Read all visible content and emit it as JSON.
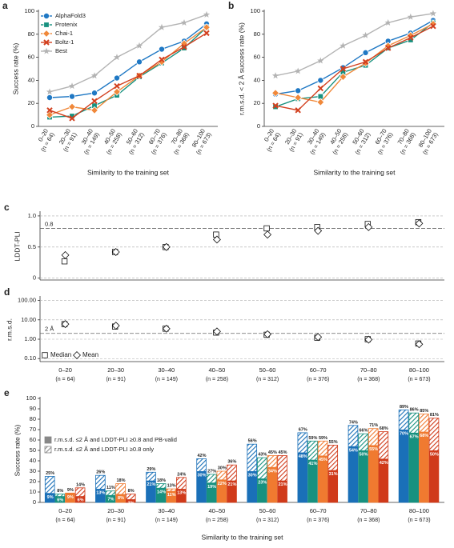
{
  "chart_data": [
    {
      "panel": "a",
      "type": "line",
      "ylabel": "Success rate (%)",
      "xlabel": "Similarity to the training set",
      "categories": [
        "0–20",
        "20–30",
        "30–40",
        "40–50",
        "50–60",
        "60–70",
        "70–80",
        "80–100"
      ],
      "category_counts": [
        "(n = 64)",
        "(n = 91)",
        "(n = 149)",
        "(n = 258)",
        "(n = 312)",
        "(n = 376)",
        "(n = 368)",
        "(n = 673)"
      ],
      "ylim": [
        0,
        100
      ],
      "yticks": [
        0,
        20,
        40,
        60,
        80,
        100
      ],
      "legend": "upper left",
      "series": [
        {
          "name": "AlphaFold3",
          "color": "#1f78c4",
          "marker": "circle",
          "values": [
            25,
            26,
            29,
            42,
            56,
            67,
            74,
            89
          ]
        },
        {
          "name": "Protenix",
          "color": "#17917f",
          "marker": "square",
          "values": [
            8,
            9,
            18,
            27,
            43,
            55,
            68,
            86
          ]
        },
        {
          "name": "Chai-1",
          "color": "#f0883a",
          "marker": "diamond",
          "values": [
            10,
            17,
            14,
            30,
            44,
            56,
            72,
            86
          ]
        },
        {
          "name": "Boltz-1",
          "color": "#d2401f",
          "marker": "x",
          "values": [
            14,
            7,
            22,
            35,
            44,
            58,
            69,
            81
          ]
        },
        {
          "name": "Best",
          "color": "#b3b3b3",
          "marker": "star",
          "values": [
            30,
            35,
            44,
            60,
            70,
            86,
            90,
            97
          ]
        }
      ]
    },
    {
      "panel": "b",
      "type": "line",
      "ylabel": "r.m.s.d. < 2 Å success rate (%)",
      "xlabel": "Similarity to the training set",
      "categories": [
        "0–20",
        "20–30",
        "30–40",
        "40–50",
        "50–60",
        "60–70",
        "70–80",
        "80–100"
      ],
      "category_counts": [
        "(n = 64)",
        "(n = 91)",
        "(n = 149)",
        "(n = 258)",
        "(n = 312)",
        "(n = 376)",
        "(n = 368)",
        "(n = 673)"
      ],
      "ylim": [
        0,
        100
      ],
      "yticks": [
        0,
        20,
        40,
        60,
        80,
        100
      ],
      "series": [
        {
          "color": "#1f78c4",
          "marker": "circle",
          "values": [
            28,
            31,
            40,
            51,
            64,
            74,
            81,
            92
          ]
        },
        {
          "color": "#17917f",
          "marker": "square",
          "values": [
            17,
            24,
            26,
            47,
            53,
            68,
            75,
            90
          ]
        },
        {
          "color": "#f0883a",
          "marker": "diamond",
          "values": [
            29,
            25,
            21,
            43,
            55,
            70,
            79,
            89
          ]
        },
        {
          "color": "#d2401f",
          "marker": "x",
          "values": [
            18,
            14,
            33,
            50,
            56,
            68,
            77,
            87
          ]
        },
        {
          "color": "#b3b3b3",
          "marker": "star",
          "values": [
            44,
            48,
            57,
            70,
            79,
            90,
            95,
            98
          ]
        }
      ]
    },
    {
      "panel": "c",
      "type": "strip",
      "ylabel": "LDDT-PLI",
      "ylim": [
        -0.03,
        1.05
      ],
      "yticks": [
        0,
        0.5,
        {
          "value": 1,
          "label": "1.0"
        }
      ],
      "grid": true,
      "threshold": {
        "value": 0.8,
        "label": "0.8"
      },
      "series": [
        {
          "marker": "square",
          "values": [
            0.27,
            0.42,
            0.5,
            0.7,
            0.8,
            0.82,
            0.87,
            0.9
          ]
        },
        {
          "marker": "diamond",
          "values": [
            0.37,
            0.42,
            0.5,
            0.62,
            0.7,
            0.76,
            0.82,
            0.88
          ]
        }
      ]
    },
    {
      "panel": "d",
      "type": "strip",
      "ylabel": "r.m.s.d.",
      "log": true,
      "categories": [
        "0–20",
        "20–30",
        "30–40",
        "40–50",
        "50–60",
        "60–70",
        "70–80",
        "80–100"
      ],
      "category_counts": [
        "(n = 64)",
        "(n = 91)",
        "(n = 149)",
        "(n = 258)",
        "(n = 312)",
        "(n = 376)",
        "(n = 368)",
        "(n = 673)"
      ],
      "ylim": [
        0.07,
        140
      ],
      "yticks": [
        {
          "value": 0.1,
          "label": "0.10"
        },
        {
          "value": 1,
          "label": "1.00"
        },
        {
          "value": 10,
          "label": "10.00"
        },
        {
          "value": 100,
          "label": "100.00"
        }
      ],
      "grid": true,
      "threshold": {
        "value": 2,
        "label": "2 Å"
      },
      "legend": "lower left",
      "series": [
        {
          "name": "Median",
          "marker": "square",
          "values": [
            6,
            4.5,
            3.5,
            2.2,
            1.7,
            1.2,
            1.0,
            0.6
          ]
        },
        {
          "name": "Mean",
          "marker": "diamond",
          "values": [
            6,
            5,
            3.5,
            2.5,
            1.8,
            1.3,
            0.95,
            0.55
          ]
        }
      ]
    },
    {
      "panel": "e",
      "type": "bar",
      "ylabel": "Success rate (%)",
      "xlabel": "Similarity to the training set",
      "categories": [
        "0–20",
        "20–30",
        "30–40",
        "40–50",
        "50–60",
        "60–70",
        "70–80",
        "80–100"
      ],
      "category_counts": [
        "(n = 64)",
        "(n = 91)",
        "(n = 149)",
        "(n = 258)",
        "(n = 312)",
        "(n = 376)",
        "(n = 368)",
        "(n = 673)"
      ],
      "ylim": [
        0,
        100
      ],
      "yticks": [
        0,
        10,
        20,
        30,
        40,
        50,
        60,
        70,
        80,
        90,
        100
      ],
      "legend": "center left",
      "legend_entries": [
        "r.m.s.d. ≤2 Å and LDDT-PLI ≥0.8 and PB-valid",
        "r.m.s.d. ≤2 Å and LDDT-PLI ≥0.8 only"
      ],
      "series": [
        {
          "color": "#1a70b8",
          "values": [
            9,
            13,
            21,
            30,
            30,
            48,
            54,
            70
          ],
          "value_labels": [
            "9%",
            "13%",
            "21%",
            "30%",
            "30%",
            "48%",
            "54%",
            "70%"
          ],
          "totals": [
            25,
            26,
            29,
            42,
            56,
            67,
            74,
            89
          ],
          "total_labels": [
            "25%",
            "26%",
            "29%",
            "42%",
            "56%",
            "67%",
            "74%",
            "89%"
          ]
        },
        {
          "color": "#17917f",
          "values": [
            6,
            7,
            14,
            19,
            23,
            41,
            50,
            67
          ],
          "value_labels": [
            "6%",
            "7%",
            "14%",
            "19%",
            "23%",
            "41%",
            "50%",
            "67%"
          ],
          "totals": [
            8,
            11,
            18,
            27,
            43,
            59,
            66,
            86
          ],
          "total_labels": [
            "8%",
            "11%",
            "18%",
            "27%",
            "43%",
            "59%",
            "66%",
            "86%"
          ]
        },
        {
          "color": "#f07a30",
          "values": [
            9,
            8,
            11,
            22,
            34,
            45,
            55,
            68
          ],
          "value_labels": [
            "9%",
            "8%",
            "11%",
            "22%",
            "34%",
            "45%",
            "55%",
            "68%"
          ],
          "totals": [
            9,
            18,
            13,
            30,
            45,
            59,
            71,
            85
          ],
          "total_labels": [
            "9%",
            "18%",
            "13%",
            "30%",
            "45%",
            "59%",
            "71%",
            "85%"
          ]
        },
        {
          "color": "#d03a1a",
          "values": [
            6,
            3,
            13,
            21,
            21,
            31,
            42,
            50
          ],
          "value_labels": [
            "6%",
            "3%",
            "13%",
            "21%",
            "21%",
            "31%",
            "42%",
            "50%"
          ],
          "totals": [
            14,
            8,
            24,
            36,
            45,
            55,
            68,
            81
          ],
          "total_labels": [
            "14%",
            "8%",
            "24%",
            "36%",
            "45%",
            "55%",
            "68%",
            "81%"
          ]
        }
      ]
    }
  ]
}
